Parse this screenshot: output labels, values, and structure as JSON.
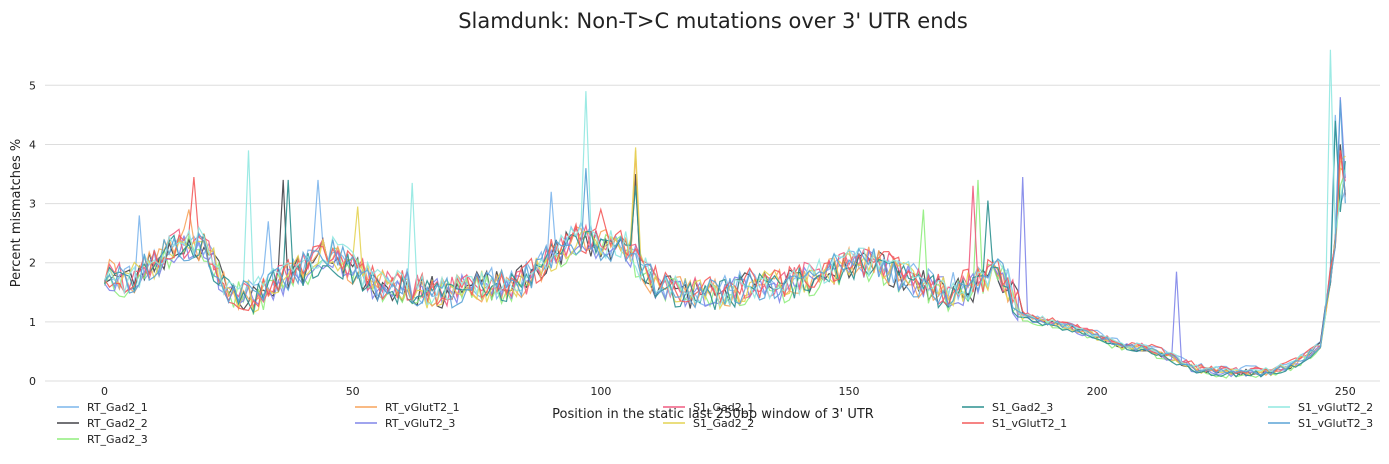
{
  "chart_data": {
    "type": "line",
    "title": "Slamdunk: Non-T>C mutations over 3' UTR ends",
    "xlabel": "Position in the static last 250bp window of 3' UTR",
    "ylabel": "Percent mismatches %",
    "xlim": [
      -12,
      257
    ],
    "ylim": [
      0,
      5.8
    ],
    "xticks": [
      0,
      50,
      100,
      150,
      200,
      250
    ],
    "yticks": [
      0,
      1,
      2,
      3,
      4,
      5
    ],
    "grid": "horizontal",
    "legend_position": "bottom",
    "anchor_x": [
      0,
      5,
      10,
      15,
      20,
      25,
      30,
      35,
      40,
      45,
      50,
      55,
      60,
      65,
      70,
      75,
      80,
      85,
      90,
      95,
      100,
      105,
      110,
      115,
      120,
      125,
      130,
      135,
      140,
      145,
      150,
      155,
      160,
      165,
      170,
      175,
      180,
      185,
      190,
      195,
      200,
      205,
      210,
      215,
      220,
      225,
      230,
      235,
      240,
      245,
      250
    ],
    "mean_profile": [
      1.8,
      1.7,
      2.0,
      2.3,
      2.3,
      1.5,
      1.4,
      1.7,
      1.9,
      2.2,
      1.9,
      1.6,
      1.6,
      1.5,
      1.5,
      1.6,
      1.6,
      1.7,
      2.1,
      2.4,
      2.3,
      2.3,
      1.7,
      1.5,
      1.5,
      1.5,
      1.6,
      1.6,
      1.7,
      1.8,
      2.0,
      2.0,
      1.8,
      1.6,
      1.5,
      1.6,
      1.9,
      1.1,
      1.0,
      0.9,
      0.75,
      0.6,
      0.55,
      0.4,
      0.2,
      0.15,
      0.15,
      0.15,
      0.3,
      0.6,
      3.5
    ],
    "series": [
      {
        "name": "RT_Gad2_1",
        "color": "#7cb5ec",
        "offset": 0.05,
        "seed": 11,
        "spikes": [
          [
            7,
            2.8
          ],
          [
            33,
            2.7
          ],
          [
            43,
            3.4
          ],
          [
            90,
            3.2
          ],
          [
            248,
            4.5
          ]
        ]
      },
      {
        "name": "RT_Gad2_2",
        "color": "#434348",
        "offset": 0.0,
        "seed": 23,
        "spikes": [
          [
            36,
            3.4
          ],
          [
            107,
            3.5
          ],
          [
            249,
            4.0
          ]
        ]
      },
      {
        "name": "RT_Gad2_3",
        "color": "#90ed7d",
        "offset": -0.05,
        "seed": 37,
        "spikes": [
          [
            165,
            2.9
          ],
          [
            176,
            3.4
          ],
          [
            249,
            3.3
          ]
        ]
      },
      {
        "name": "RT_vGlutT2_1",
        "color": "#f7a35c",
        "offset": 0.0,
        "seed": 41,
        "spikes": [
          [
            17,
            2.9
          ],
          [
            107,
            3.9
          ],
          [
            249,
            3.6
          ]
        ]
      },
      {
        "name": "RT_vGluT2_3",
        "color": "#8085e9",
        "offset": -0.02,
        "seed": 53,
        "spikes": [
          [
            185,
            3.45
          ],
          [
            216,
            1.85
          ],
          [
            249,
            4.8
          ]
        ]
      },
      {
        "name": "S1_Gad2_1",
        "color": "#f15c80",
        "offset": 0.02,
        "seed": 61,
        "spikes": [
          [
            175,
            3.3
          ],
          [
            249,
            3.9
          ]
        ]
      },
      {
        "name": "S1_Gad2_2",
        "color": "#e4d354",
        "offset": 0.0,
        "seed": 71,
        "spikes": [
          [
            51,
            2.95
          ],
          [
            107,
            3.95
          ],
          [
            249,
            3.7
          ]
        ]
      },
      {
        "name": "S1_Gad2_3",
        "color": "#2b908f",
        "offset": -0.03,
        "seed": 83,
        "spikes": [
          [
            37,
            3.4
          ],
          [
            107,
            3.3
          ],
          [
            178,
            3.05
          ],
          [
            248,
            4.4
          ]
        ]
      },
      {
        "name": "S1_vGlutT2_1",
        "color": "#f45b5b",
        "offset": 0.04,
        "seed": 97,
        "spikes": [
          [
            18,
            3.45
          ],
          [
            100,
            2.9
          ],
          [
            249,
            3.9
          ]
        ]
      },
      {
        "name": "S1_vGlutT2_2",
        "color": "#91e8e1",
        "offset": 0.03,
        "seed": 103,
        "spikes": [
          [
            29,
            3.9
          ],
          [
            62,
            3.35
          ],
          [
            97,
            4.9
          ],
          [
            247,
            5.6
          ]
        ]
      },
      {
        "name": "S1_vGlutT2_3",
        "color": "#5aa3d6",
        "offset": 0.0,
        "seed": 113,
        "spikes": [
          [
            97,
            3.6
          ],
          [
            249,
            4.75
          ]
        ]
      }
    ]
  }
}
